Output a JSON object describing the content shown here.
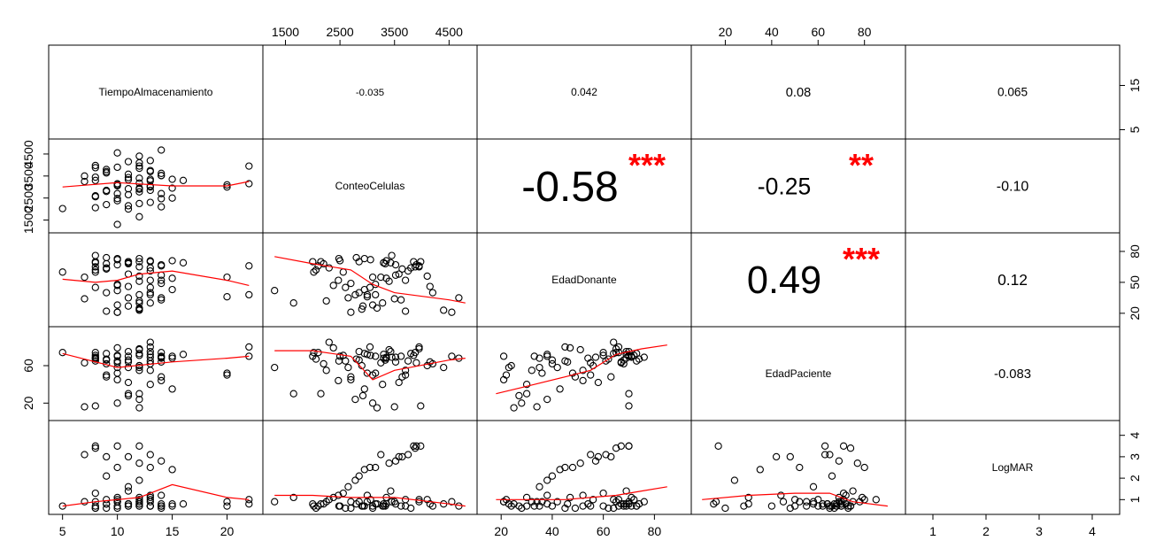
{
  "chart_data": {
    "type": "scatter-matrix",
    "variables": [
      "TiempoAlmacenamiento",
      "ConteoCelulas",
      "EdadDonante",
      "EdadPaciente",
      "LogMAR"
    ],
    "ranges": [
      [
        4.3,
        22.7
      ],
      [
        1200,
        4900
      ],
      [
        13,
        92
      ],
      [
        8,
        95
      ],
      [
        0.6,
        4.4
      ]
    ],
    "ticks": [
      [
        5,
        10,
        15,
        20
      ],
      [
        1500,
        2500,
        3500,
        4500
      ],
      [
        20,
        50,
        80
      ],
      [
        20,
        60
      ],
      [
        1,
        2,
        3,
        4
      ]
    ],
    "tick_labels": [
      [
        "5",
        "10",
        "15",
        "20"
      ],
      [
        "1500",
        "2500",
        "3500",
        "4500"
      ],
      [
        "20",
        "50",
        "80"
      ],
      [
        "20",
        "60"
      ],
      [
        "1",
        "2",
        "3",
        "4"
      ]
    ],
    "top_ticks": [
      [
        20,
        40,
        60,
        80
      ]
    ],
    "top_tick_labels": [
      [
        "20",
        "40",
        "60",
        "80"
      ]
    ],
    "correlations": [
      {
        "row": 0,
        "col": 1,
        "label": "-0.035",
        "stars": ""
      },
      {
        "row": 0,
        "col": 2,
        "label": "0.042",
        "stars": ""
      },
      {
        "row": 0,
        "col": 3,
        "label": "0.08",
        "stars": ""
      },
      {
        "row": 0,
        "col": 4,
        "label": "0.065",
        "stars": ""
      },
      {
        "row": 1,
        "col": 2,
        "label": "-0.58",
        "stars": "***"
      },
      {
        "row": 1,
        "col": 3,
        "label": "-0.25",
        "stars": "**"
      },
      {
        "row": 1,
        "col": 4,
        "label": "-0.10",
        "stars": ""
      },
      {
        "row": 2,
        "col": 3,
        "label": "0.49",
        "stars": "***"
      },
      {
        "row": 2,
        "col": 4,
        "label": "0.12",
        "stars": ""
      },
      {
        "row": 3,
        "col": 4,
        "label": "-0.083",
        "stars": ""
      }
    ],
    "colors": {
      "points": "#000000",
      "smooth": "#ff0000",
      "stars": "#ff0000"
    },
    "observations": [
      [
        8,
        3980,
        70,
        17,
        3.5
      ],
      [
        10,
        3900,
        67,
        63,
        3.5
      ],
      [
        12,
        3850,
        70,
        71,
        3.5
      ],
      [
        8,
        3880,
        65,
        74,
        3.4
      ],
      [
        13,
        3750,
        61,
        65,
        3.1
      ],
      [
        9,
        3640,
        63,
        48,
        3.0
      ],
      [
        11,
        3580,
        58,
        42,
        3.0
      ],
      [
        14,
        3520,
        57,
        69,
        2.8
      ],
      [
        12,
        3400,
        51,
        77,
        2.7
      ],
      [
        7,
        3250,
        55,
        63,
        3.1
      ],
      [
        10,
        3150,
        48,
        52,
        2.5
      ],
      [
        13,
        3050,
        45,
        80,
        2.5
      ],
      [
        15,
        2950,
        43,
        35,
        2.4
      ],
      [
        9,
        2850,
        40,
        66,
        2.1
      ],
      [
        12,
        2780,
        38,
        24,
        1.9
      ],
      [
        11,
        2650,
        35,
        58,
        1.6
      ],
      [
        8,
        2560,
        60,
        71,
        1.3
      ],
      [
        14,
        2470,
        52,
        44,
        1.2
      ],
      [
        10,
        2380,
        47,
        79,
        1.1
      ],
      [
        13,
        2300,
        64,
        85,
        1.0
      ],
      [
        12,
        2250,
        32,
        55,
        0.9
      ],
      [
        9,
        2200,
        68,
        62,
        0.8
      ],
      [
        11,
        2150,
        70,
        30,
        0.8
      ],
      [
        14,
        2100,
        66,
        74,
        0.7
      ],
      [
        8,
        2060,
        62,
        67,
        0.6
      ],
      [
        13,
        3280,
        30,
        40,
        0.7
      ],
      [
        12,
        3180,
        25,
        15,
        0.8
      ],
      [
        10,
        3100,
        28,
        20,
        0.6
      ],
      [
        11,
        2920,
        27,
        28,
        0.7
      ],
      [
        7,
        3500,
        34,
        16,
        0.9
      ],
      [
        9,
        3700,
        22,
        50,
        1.0
      ],
      [
        14,
        3620,
        33,
        70,
        0.7
      ],
      [
        13,
        3000,
        38,
        72,
        1.2
      ],
      [
        12,
        2900,
        24,
        60,
        0.7
      ],
      [
        10,
        2700,
        21,
        45,
        0.9
      ],
      [
        8,
        2600,
        45,
        65,
        0.6
      ],
      [
        15,
        3350,
        54,
        68,
        0.8
      ],
      [
        11,
        3430,
        69,
        75,
        1.4
      ],
      [
        13,
        4200,
        40,
        62,
        0.7
      ],
      [
        12,
        4400,
        23,
        58,
        0.8
      ],
      [
        14,
        4680,
        35,
        68,
        0.7
      ],
      [
        10,
        4550,
        21,
        70,
        0.9
      ],
      [
        5,
        2020,
        60,
        74,
        0.7
      ],
      [
        20,
        3100,
        55,
        50,
        0.7
      ],
      [
        20,
        3000,
        36,
        52,
        0.9
      ],
      [
        22,
        3150,
        38,
        70,
        0.8
      ],
      [
        22,
        3950,
        66,
        80,
        1.0
      ],
      [
        16,
        3300,
        69,
        72,
        0.8
      ],
      [
        12,
        3950,
        65,
        78,
        0.9
      ],
      [
        13,
        3350,
        71,
        69,
        1.1
      ],
      [
        8,
        3300,
        69,
        68,
        0.7
      ],
      [
        9,
        2800,
        74,
        67,
        0.8
      ],
      [
        10,
        3060,
        72,
        71,
        1.0
      ],
      [
        11,
        3330,
        68,
        66,
        0.7
      ],
      [
        12,
        2950,
        73,
        73,
        0.7
      ],
      [
        13,
        2850,
        70,
        75,
        0.9
      ],
      [
        14,
        3520,
        67,
        64,
        0.8
      ],
      [
        15,
        2500,
        71,
        70,
        0.7
      ],
      [
        8,
        3450,
        76,
        69,
        0.9
      ],
      [
        9,
        3800,
        64,
        73,
        0.6
      ],
      [
        10,
        2480,
        73,
        65,
        0.7
      ],
      [
        11,
        2000,
        70,
        70,
        0.8
      ],
      [
        12,
        4100,
        56,
        60,
        1.0
      ],
      [
        13,
        3700,
        52,
        55,
        0.7
      ],
      [
        14,
        2700,
        49,
        48,
        0.6
      ],
      [
        10,
        1300,
        42,
        58,
        0.9
      ],
      [
        12,
        1650,
        30,
        30,
        1.1
      ],
      [
        11,
        4150,
        46,
        64,
        0.8
      ]
    ],
    "smooth_lines": [
      {
        "row": 1,
        "col": 0,
        "x": [
          5,
          10,
          15,
          20,
          22
        ],
        "y": [
          3000,
          3200,
          3050,
          3050,
          3250
        ]
      },
      {
        "row": 2,
        "col": 0,
        "x": [
          5,
          8,
          10,
          12,
          15,
          20,
          22
        ],
        "y": [
          53,
          50,
          52,
          58,
          61,
          52,
          47
        ]
      },
      {
        "row": 3,
        "col": 0,
        "x": [
          5,
          10,
          15,
          20,
          22
        ],
        "y": [
          73,
          58,
          64,
          68,
          70
        ]
      },
      {
        "row": 4,
        "col": 0,
        "x": [
          5,
          8,
          10,
          12,
          15,
          20,
          22
        ],
        "y": [
          0.7,
          0.9,
          1.0,
          1.1,
          1.7,
          1.1,
          1.0
        ]
      },
      {
        "row": 2,
        "col": 1,
        "x": [
          1300,
          2000,
          2700,
          3100,
          3500,
          4500,
          4800
        ],
        "y": [
          75,
          68,
          62,
          48,
          40,
          33,
          30
        ]
      },
      {
        "row": 3,
        "col": 1,
        "x": [
          1300,
          2000,
          2700,
          3100,
          3500,
          4500,
          4800
        ],
        "y": [
          76,
          76,
          70,
          45,
          55,
          66,
          68
        ]
      },
      {
        "row": 4,
        "col": 1,
        "x": [
          1300,
          2000,
          2700,
          3500,
          4500,
          4800
        ],
        "y": [
          1.2,
          1.2,
          1.1,
          1.1,
          0.8,
          0.7
        ]
      },
      {
        "row": 3,
        "col": 2,
        "x": [
          18,
          30,
          45,
          55,
          65,
          75,
          85
        ],
        "y": [
          30,
          38,
          48,
          55,
          72,
          78,
          82
        ]
      },
      {
        "row": 4,
        "col": 2,
        "x": [
          18,
          30,
          45,
          55,
          65,
          75,
          85
        ],
        "y": [
          1.0,
          1.0,
          1.0,
          1.1,
          1.2,
          1.4,
          1.6
        ]
      },
      {
        "row": 4,
        "col": 3,
        "x": [
          10,
          30,
          50,
          65,
          75,
          90
        ],
        "y": [
          1.0,
          1.2,
          1.3,
          1.3,
          0.9,
          0.7
        ]
      }
    ]
  }
}
